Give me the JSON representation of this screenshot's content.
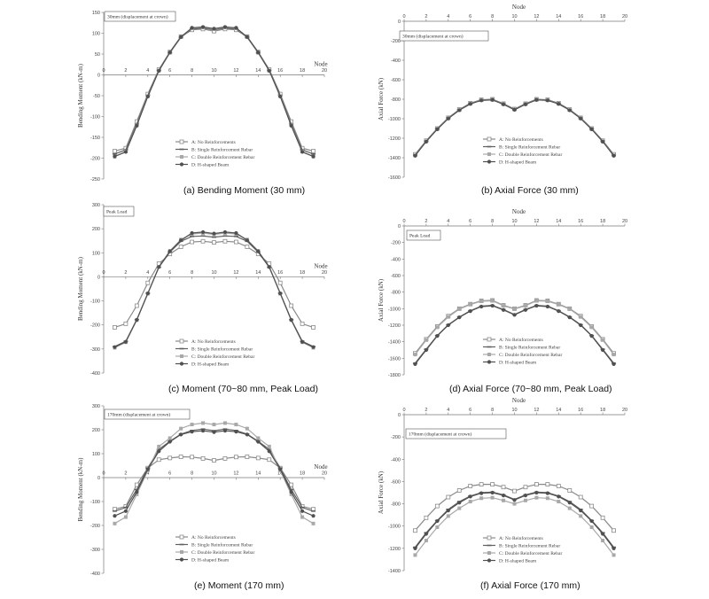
{
  "chart_data": [
    {
      "type": "line",
      "caption": "(a) Bending Moment (30 mm)",
      "ylabel": "Bending Moment (kN-m)",
      "xlabel": "Node",
      "annotation": "30mm (displacement at crown)",
      "xlim": [
        0,
        20
      ],
      "ylim": [
        -250,
        150
      ],
      "xticks": [
        0,
        2,
        4,
        6,
        8,
        10,
        12,
        14,
        16,
        18,
        20
      ],
      "yticks": [
        150,
        100,
        50,
        0,
        -50,
        -100,
        -150,
        -200,
        -250
      ],
      "x": [
        1,
        2,
        3,
        4,
        5,
        6,
        7,
        8,
        9,
        10,
        11,
        12,
        13,
        14,
        15,
        16,
        17,
        18,
        19
      ],
      "series": [
        {
          "name": "A: No Reinforcements",
          "color": "#8a8a8a",
          "marker": "square-open",
          "values": [
            -183,
            -176,
            -112,
            -46,
            13,
            55,
            92,
            108,
            110,
            105,
            110,
            108,
            92,
            55,
            13,
            -46,
            -112,
            -176,
            -183
          ]
        },
        {
          "name": "B: Single Reinforcement Rebar",
          "color": "#606060",
          "marker": "dash",
          "values": [
            -190,
            -180,
            -118,
            -49,
            11,
            53,
            90,
            110,
            112,
            108,
            112,
            110,
            90,
            53,
            11,
            -49,
            -118,
            -180,
            -190
          ]
        },
        {
          "name": "C: Double Reinforcement Rebar",
          "color": "#a8a8a8",
          "marker": "square",
          "values": [
            -196,
            -184,
            -121,
            -51,
            10,
            53,
            91,
            112,
            114,
            110,
            114,
            112,
            91,
            53,
            10,
            -51,
            -121,
            -184,
            -196
          ]
        },
        {
          "name": "D: H-shaped Beam",
          "color": "#505050",
          "marker": "circle",
          "values": [
            -196,
            -185,
            -122,
            -52,
            10,
            54,
            91,
            113,
            115,
            111,
            115,
            113,
            91,
            54,
            10,
            -52,
            -122,
            -185,
            -196
          ]
        }
      ],
      "legend": "bottom-center"
    },
    {
      "type": "line",
      "caption": "(b) Axial Force (30 mm)",
      "ylabel": "Axial Force (kN)",
      "xlabel": "Node",
      "annotation": "30mm (displacement at crown)",
      "xlim": [
        0,
        20
      ],
      "ylim": [
        -1600,
        0
      ],
      "xticks": [
        0,
        2,
        4,
        6,
        8,
        10,
        12,
        14,
        16,
        18,
        20
      ],
      "yticks": [
        0,
        -200,
        -400,
        -600,
        -800,
        -1000,
        -1200,
        -1400,
        -1600
      ],
      "x": [
        1,
        2,
        3,
        4,
        5,
        6,
        7,
        8,
        9,
        10,
        11,
        12,
        13,
        14,
        15,
        16,
        17,
        18,
        19
      ],
      "series": [
        {
          "name": "A: No Reinforcements",
          "color": "#8a8a8a",
          "marker": "square-open",
          "values": [
            -1365,
            -1225,
            -1100,
            -990,
            -905,
            -840,
            -805,
            -800,
            -845,
            -900,
            -845,
            -800,
            -805,
            -840,
            -905,
            -990,
            -1100,
            -1225,
            -1365
          ]
        },
        {
          "name": "B: Single Reinforcement Rebar",
          "color": "#606060",
          "marker": "dash",
          "values": [
            -1370,
            -1228,
            -1103,
            -993,
            -908,
            -843,
            -808,
            -803,
            -848,
            -903,
            -848,
            -803,
            -808,
            -843,
            -908,
            -993,
            -1103,
            -1228,
            -1370
          ]
        },
        {
          "name": "C: Double Reinforcement Rebar",
          "color": "#a8a8a8",
          "marker": "square",
          "values": [
            -1375,
            -1232,
            -1106,
            -996,
            -911,
            -846,
            -810,
            -805,
            -850,
            -905,
            -850,
            -805,
            -810,
            -846,
            -911,
            -996,
            -1106,
            -1232,
            -1375
          ]
        },
        {
          "name": "D: H-shaped Beam",
          "color": "#505050",
          "marker": "circle",
          "values": [
            -1380,
            -1235,
            -1108,
            -998,
            -913,
            -848,
            -812,
            -807,
            -852,
            -908,
            -852,
            -807,
            -812,
            -848,
            -913,
            -998,
            -1108,
            -1235,
            -1380
          ]
        }
      ],
      "legend": "bottom-center"
    },
    {
      "type": "line",
      "caption": "(c) Moment (70~80 mm, Peak Load)",
      "ylabel": "Bending Moment (kN-m)",
      "xlabel": "Node",
      "annotation": "Peak Load",
      "xlim": [
        0,
        20
      ],
      "ylim": [
        -400,
        300
      ],
      "xticks": [
        0,
        2,
        4,
        6,
        8,
        10,
        12,
        14,
        16,
        18,
        20
      ],
      "yticks": [
        300,
        200,
        100,
        0,
        -100,
        -200,
        -300,
        -400
      ],
      "x": [
        1,
        2,
        3,
        4,
        5,
        6,
        7,
        8,
        9,
        10,
        11,
        12,
        13,
        14,
        15,
        16,
        17,
        18,
        19
      ],
      "series": [
        {
          "name": "A: No Reinforcements",
          "color": "#8a8a8a",
          "marker": "square-open",
          "values": [
            -210,
            -195,
            -120,
            -25,
            55,
            95,
            125,
            145,
            148,
            143,
            148,
            145,
            125,
            95,
            55,
            -25,
            -120,
            -195,
            -210
          ]
        },
        {
          "name": "B: Single Reinforcement Rebar",
          "color": "#606060",
          "marker": "dash",
          "values": [
            -290,
            -268,
            -178,
            -68,
            40,
            103,
            148,
            168,
            170,
            165,
            170,
            168,
            148,
            103,
            40,
            -68,
            -178,
            -268,
            -290
          ]
        },
        {
          "name": "C: Double Reinforcement Rebar",
          "color": "#a8a8a8",
          "marker": "square",
          "values": [
            -295,
            -272,
            -180,
            -70,
            42,
            108,
            155,
            178,
            182,
            176,
            182,
            178,
            155,
            108,
            42,
            -70,
            -180,
            -272,
            -295
          ]
        },
        {
          "name": "D: H-shaped Beam",
          "color": "#505050",
          "marker": "circle",
          "values": [
            -292,
            -270,
            -179,
            -69,
            41,
            106,
            152,
            182,
            186,
            180,
            186,
            182,
            152,
            106,
            41,
            -69,
            -179,
            -270,
            -292
          ]
        }
      ],
      "legend": "bottom-center"
    },
    {
      "type": "line",
      "caption": "(d) Axial Force (70~80 mm, Peak Load)",
      "ylabel": "Axial Force (kN)",
      "xlabel": "Node",
      "annotation": "Peak Load",
      "xlim": [
        0,
        20
      ],
      "ylim": [
        -1800,
        0
      ],
      "xticks": [
        0,
        2,
        4,
        6,
        8,
        10,
        12,
        14,
        16,
        18,
        20
      ],
      "yticks": [
        0,
        -200,
        -400,
        -600,
        -800,
        -1000,
        -1200,
        -1400,
        -1600,
        -1800
      ],
      "x": [
        1,
        2,
        3,
        4,
        5,
        6,
        7,
        8,
        9,
        10,
        11,
        12,
        13,
        14,
        15,
        16,
        17,
        18,
        19
      ],
      "series": [
        {
          "name": "A: No Reinforcements",
          "color": "#8a8a8a",
          "marker": "square-open",
          "values": [
            -1540,
            -1370,
            -1215,
            -1090,
            -1000,
            -945,
            -905,
            -900,
            -960,
            -1000,
            -960,
            -900,
            -905,
            -945,
            -1000,
            -1090,
            -1215,
            -1370,
            -1540
          ]
        },
        {
          "name": "B: Single Reinforcement Rebar",
          "color": "#606060",
          "marker": "dash",
          "values": [
            -1660,
            -1490,
            -1325,
            -1195,
            -1100,
            -1025,
            -970,
            -960,
            -1010,
            -1070,
            -1010,
            -960,
            -970,
            -1025,
            -1100,
            -1195,
            -1325,
            -1490,
            -1660
          ]
        },
        {
          "name": "C: Double Reinforcement Rebar",
          "color": "#a8a8a8",
          "marker": "square",
          "values": [
            -1555,
            -1380,
            -1225,
            -1100,
            -1005,
            -950,
            -910,
            -905,
            -965,
            -1005,
            -965,
            -905,
            -910,
            -950,
            -1005,
            -1100,
            -1225,
            -1380,
            -1555
          ]
        },
        {
          "name": "D: H-shaped Beam",
          "color": "#505050",
          "marker": "circle",
          "values": [
            -1670,
            -1500,
            -1330,
            -1200,
            -1105,
            -1030,
            -975,
            -965,
            -1015,
            -1075,
            -1015,
            -965,
            -975,
            -1030,
            -1105,
            -1200,
            -1330,
            -1500,
            -1670
          ]
        }
      ],
      "legend": "bottom-center"
    },
    {
      "type": "line",
      "caption": "(e) Moment (170 mm)",
      "ylabel": "Bending Moment (kN-m)",
      "xlabel": "Node",
      "annotation": "170mm (displacement at crown)",
      "xlim": [
        0,
        20
      ],
      "ylim": [
        -400,
        300
      ],
      "xticks": [
        0,
        2,
        4,
        6,
        8,
        10,
        12,
        14,
        16,
        18,
        20
      ],
      "yticks": [
        300,
        200,
        100,
        0,
        -100,
        -200,
        -300,
        -400
      ],
      "x": [
        1,
        2,
        3,
        4,
        5,
        6,
        7,
        8,
        9,
        10,
        11,
        12,
        13,
        14,
        15,
        16,
        17,
        18,
        19
      ],
      "series": [
        {
          "name": "A: No Reinforcements",
          "color": "#8a8a8a",
          "marker": "square-open",
          "values": [
            -132,
            -120,
            -30,
            40,
            75,
            82,
            87,
            86,
            80,
            72,
            80,
            86,
            87,
            82,
            75,
            40,
            -30,
            -120,
            -132
          ]
        },
        {
          "name": "B: Single Reinforcement Rebar",
          "color": "#606060",
          "marker": "dash",
          "values": [
            -140,
            -125,
            -50,
            40,
            118,
            152,
            182,
            197,
            203,
            196,
            203,
            197,
            182,
            152,
            118,
            40,
            -50,
            -125,
            -140
          ]
        },
        {
          "name": "C: Double Reinforcement Rebar",
          "color": "#a8a8a8",
          "marker": "square",
          "values": [
            -192,
            -165,
            -70,
            30,
            130,
            165,
            205,
            222,
            228,
            222,
            228,
            222,
            205,
            165,
            130,
            30,
            -70,
            -165,
            -192
          ]
        },
        {
          "name": "D: H-shaped Beam",
          "color": "#505050",
          "marker": "circle",
          "values": [
            -160,
            -140,
            -60,
            35,
            110,
            150,
            180,
            192,
            196,
            190,
            196,
            192,
            180,
            150,
            110,
            35,
            -60,
            -140,
            -160
          ]
        }
      ],
      "legend": "bottom-center"
    },
    {
      "type": "line",
      "caption": "(f) Axial Force (170 mm)",
      "ylabel": "Axial Force (kN)",
      "xlabel": "Node",
      "annotation": "170mm (displacement at crown)",
      "xlim": [
        0,
        20
      ],
      "ylim": [
        -1400,
        0
      ],
      "xticks": [
        0,
        2,
        4,
        6,
        8,
        10,
        12,
        14,
        16,
        18,
        20
      ],
      "yticks": [
        0,
        -200,
        -400,
        -600,
        -800,
        -1000,
        -1200,
        -1400
      ],
      "x": [
        1,
        2,
        3,
        4,
        5,
        6,
        7,
        8,
        9,
        10,
        11,
        12,
        13,
        14,
        15,
        16,
        17,
        18,
        19
      ],
      "series": [
        {
          "name": "A: No Reinforcements",
          "color": "#8a8a8a",
          "marker": "square-open",
          "values": [
            -1040,
            -925,
            -820,
            -740,
            -680,
            -640,
            -625,
            -625,
            -650,
            -685,
            -650,
            -625,
            -625,
            -640,
            -680,
            -740,
            -820,
            -925,
            -1040
          ]
        },
        {
          "name": "B: Single Reinforcement Rebar",
          "color": "#606060",
          "marker": "dash",
          "values": [
            -1190,
            -1060,
            -950,
            -850,
            -780,
            -730,
            -700,
            -695,
            -720,
            -760,
            -720,
            -695,
            -700,
            -730,
            -780,
            -850,
            -950,
            -1060,
            -1190
          ]
        },
        {
          "name": "C: Double Reinforcement Rebar",
          "color": "#a8a8a8",
          "marker": "square",
          "values": [
            -1260,
            -1130,
            -1010,
            -910,
            -840,
            -780,
            -750,
            -745,
            -770,
            -800,
            -770,
            -745,
            -750,
            -780,
            -840,
            -910,
            -1010,
            -1130,
            -1260
          ]
        },
        {
          "name": "D: H-shaped Beam",
          "color": "#505050",
          "marker": "circle",
          "values": [
            -1200,
            -1070,
            -955,
            -860,
            -790,
            -735,
            -705,
            -700,
            -725,
            -765,
            -725,
            -700,
            -705,
            -735,
            -790,
            -860,
            -955,
            -1070,
            -1200
          ]
        }
      ],
      "legend": "bottom-center"
    }
  ]
}
